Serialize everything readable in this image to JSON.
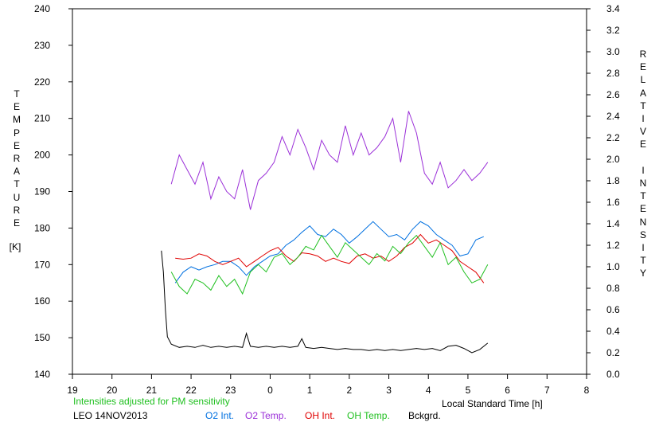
{
  "chart_data": {
    "type": "line",
    "xlabel": "Local Standard Time [h]",
    "ylabel_left": "TEMPERATURE",
    "ylabel_left_unit": "[K]",
    "ylabel_right": "RELATIVE INTENSITY",
    "x_ticks": [
      "19",
      "20",
      "21",
      "22",
      "23",
      "0",
      "1",
      "2",
      "3",
      "4",
      "5",
      "6",
      "7",
      "8"
    ],
    "xlim": [
      19,
      32
    ],
    "ylim_left": [
      140,
      240
    ],
    "ylim_right": [
      0.0,
      3.4
    ],
    "y_left_ticks": [
      "140",
      "150",
      "160",
      "170",
      "180",
      "190",
      "200",
      "210",
      "220",
      "230",
      "240"
    ],
    "y_right_ticks": [
      "0.0",
      "0.2",
      "0.4",
      "0.6",
      "0.8",
      "1.0",
      "1.2",
      "1.4",
      "1.6",
      "1.8",
      "2.0",
      "2.2",
      "2.4",
      "2.6",
      "2.8",
      "3.0",
      "3.2",
      "3.4"
    ],
    "grid": false,
    "note": "Intensities adjusted for PM sensitivity",
    "station": "LEO 14NOV2013",
    "series": [
      {
        "name": "O2 Int.",
        "axis": "right",
        "color": "#0070e0",
        "x": [
          21.6,
          21.8,
          22.0,
          22.2,
          22.4,
          22.6,
          22.8,
          23.0,
          23.2,
          23.4,
          23.6,
          23.8,
          24.0,
          24.2,
          24.4,
          24.6,
          24.8,
          25.0,
          25.2,
          25.4,
          25.6,
          25.8,
          26.0,
          26.2,
          26.4,
          26.6,
          26.8,
          27.0,
          27.2,
          27.4,
          27.6,
          27.8,
          28.0,
          28.2,
          28.4,
          28.6,
          28.8,
          29.0,
          29.2,
          29.4
        ],
        "y": [
          0.85,
          0.95,
          1.0,
          0.97,
          1.0,
          1.02,
          1.05,
          1.05,
          1.0,
          0.92,
          1.0,
          1.05,
          1.1,
          1.12,
          1.2,
          1.25,
          1.32,
          1.38,
          1.3,
          1.28,
          1.35,
          1.3,
          1.22,
          1.28,
          1.35,
          1.42,
          1.35,
          1.28,
          1.3,
          1.25,
          1.35,
          1.42,
          1.38,
          1.3,
          1.25,
          1.2,
          1.1,
          1.12,
          1.25,
          1.28
        ]
      },
      {
        "name": "O2 Temp.",
        "axis": "left",
        "color": "#9b30d8",
        "x": [
          21.5,
          21.7,
          21.9,
          22.1,
          22.3,
          22.5,
          22.7,
          22.9,
          23.1,
          23.3,
          23.5,
          23.7,
          23.9,
          24.1,
          24.3,
          24.5,
          24.7,
          24.9,
          25.1,
          25.3,
          25.5,
          25.7,
          25.9,
          26.1,
          26.3,
          26.5,
          26.7,
          26.9,
          27.1,
          27.3,
          27.5,
          27.7,
          27.9,
          28.1,
          28.3,
          28.5,
          28.7,
          28.9,
          29.1,
          29.3,
          29.5
        ],
        "y": [
          192,
          200,
          196,
          192,
          198,
          188,
          194,
          190,
          188,
          196,
          185,
          193,
          195,
          198,
          205,
          200,
          207,
          202,
          196,
          204,
          200,
          198,
          208,
          200,
          206,
          200,
          202,
          205,
          210,
          198,
          212,
          206,
          195,
          192,
          198,
          191,
          193,
          196,
          193,
          195,
          198
        ]
      },
      {
        "name": "OH Int.",
        "axis": "right",
        "color": "#e00000",
        "x": [
          21.6,
          21.8,
          22.0,
          22.2,
          22.4,
          22.6,
          22.8,
          23.0,
          23.2,
          23.4,
          23.6,
          23.8,
          24.0,
          24.2,
          24.4,
          24.6,
          24.8,
          25.0,
          25.2,
          25.4,
          25.6,
          25.8,
          26.0,
          26.2,
          26.4,
          26.6,
          26.8,
          27.0,
          27.2,
          27.4,
          27.6,
          27.8,
          28.0,
          28.2,
          28.4,
          28.6,
          28.8,
          29.0,
          29.2,
          29.4
        ],
        "y": [
          1.08,
          1.07,
          1.08,
          1.12,
          1.1,
          1.05,
          1.02,
          1.05,
          1.08,
          1.0,
          1.05,
          1.1,
          1.15,
          1.18,
          1.1,
          1.05,
          1.13,
          1.12,
          1.1,
          1.05,
          1.08,
          1.05,
          1.03,
          1.1,
          1.12,
          1.08,
          1.1,
          1.05,
          1.1,
          1.18,
          1.22,
          1.3,
          1.22,
          1.25,
          1.2,
          1.15,
          1.05,
          1.0,
          0.95,
          0.85
        ]
      },
      {
        "name": "OH Temp.",
        "axis": "left",
        "color": "#20c020",
        "x": [
          21.5,
          21.7,
          21.9,
          22.1,
          22.3,
          22.5,
          22.7,
          22.9,
          23.1,
          23.3,
          23.5,
          23.7,
          23.9,
          24.1,
          24.3,
          24.5,
          24.7,
          24.9,
          25.1,
          25.3,
          25.5,
          25.7,
          25.9,
          26.1,
          26.3,
          26.5,
          26.7,
          26.9,
          27.1,
          27.3,
          27.5,
          27.7,
          27.9,
          28.1,
          28.3,
          28.5,
          28.7,
          28.9,
          29.1,
          29.3,
          29.5
        ],
        "y": [
          168,
          164,
          162,
          166,
          165,
          163,
          167,
          164,
          166,
          162,
          168,
          170,
          168,
          172,
          173,
          170,
          172,
          175,
          174,
          178,
          175,
          172,
          176,
          174,
          172,
          170,
          173,
          171,
          175,
          173,
          176,
          178,
          175,
          172,
          176,
          170,
          172,
          168,
          165,
          166,
          170
        ]
      },
      {
        "name": "Bckgrd.",
        "axis": "right",
        "color": "#000000",
        "x": [
          21.25,
          21.3,
          21.35,
          21.4,
          21.5,
          21.7,
          21.9,
          22.1,
          22.3,
          22.5,
          22.7,
          22.9,
          23.1,
          23.3,
          23.4,
          23.5,
          23.7,
          23.9,
          24.1,
          24.3,
          24.5,
          24.7,
          24.8,
          24.9,
          25.1,
          25.3,
          25.5,
          25.7,
          25.9,
          26.1,
          26.3,
          26.5,
          26.7,
          26.9,
          27.1,
          27.3,
          27.5,
          27.7,
          27.9,
          28.1,
          28.3,
          28.5,
          28.7,
          28.9,
          29.1,
          29.3,
          29.5
        ],
        "y": [
          1.15,
          0.95,
          0.6,
          0.35,
          0.28,
          0.25,
          0.26,
          0.25,
          0.27,
          0.25,
          0.26,
          0.25,
          0.26,
          0.25,
          0.38,
          0.26,
          0.25,
          0.26,
          0.25,
          0.26,
          0.25,
          0.26,
          0.33,
          0.25,
          0.24,
          0.25,
          0.24,
          0.23,
          0.24,
          0.23,
          0.23,
          0.22,
          0.23,
          0.22,
          0.23,
          0.22,
          0.23,
          0.24,
          0.23,
          0.24,
          0.22,
          0.26,
          0.27,
          0.24,
          0.2,
          0.23,
          0.29
        ]
      }
    ]
  }
}
